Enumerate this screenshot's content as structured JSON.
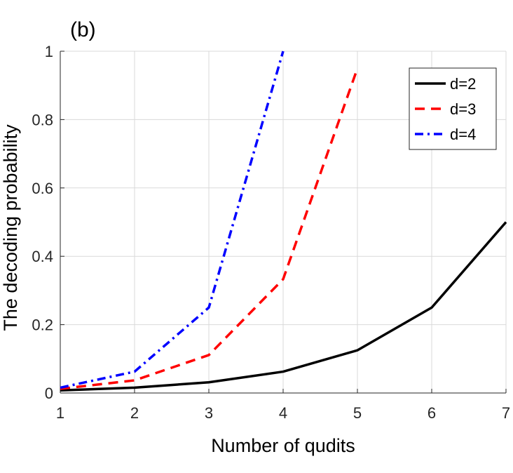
{
  "panel_label": "(b)",
  "chart_data": {
    "type": "line",
    "xlabel": "Number of qudits",
    "ylabel": "The decoding probability",
    "xlim": [
      1,
      7
    ],
    "ylim": [
      0,
      1
    ],
    "xticks": [
      "1",
      "2",
      "3",
      "4",
      "5",
      "6",
      "7"
    ],
    "yticks": [
      "0",
      "0.2",
      "0.4",
      "0.6",
      "0.8",
      "1"
    ],
    "grid": true,
    "legend_position": "top-right",
    "series": [
      {
        "name": "d=2",
        "color": "#000000",
        "dash": "solid",
        "x": [
          1,
          2,
          3,
          4,
          5,
          6,
          7
        ],
        "y": [
          0.0078,
          0.0156,
          0.0313,
          0.0625,
          0.125,
          0.25,
          0.5
        ]
      },
      {
        "name": "d=3",
        "color": "#ff0000",
        "dash": "dashed",
        "x": [
          1,
          2,
          3,
          4,
          5
        ],
        "y": [
          0.0123,
          0.037,
          0.111,
          0.333,
          0.95
        ]
      },
      {
        "name": "d=4",
        "color": "#0000ff",
        "dash": "dashdot",
        "x": [
          1,
          2,
          3,
          4
        ],
        "y": [
          0.0156,
          0.0625,
          0.25,
          1.0
        ]
      }
    ]
  }
}
